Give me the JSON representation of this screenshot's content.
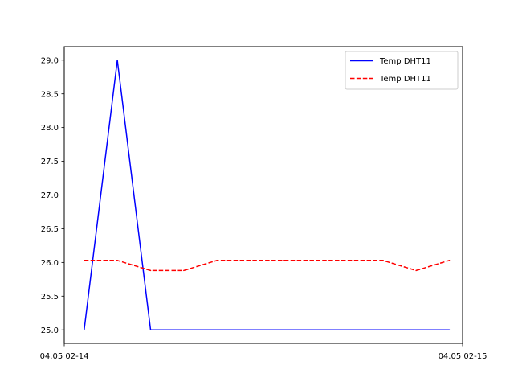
{
  "chart_data": {
    "type": "line",
    "title": "",
    "xlabel": "",
    "ylabel": "",
    "x_tick_labels": [
      "04.05 02-14",
      "04.05 02-15"
    ],
    "y_ticks": [
      25.0,
      25.5,
      26.0,
      26.5,
      27.0,
      27.5,
      28.0,
      28.5,
      29.0
    ],
    "y_tick_labels": [
      "25.0",
      "25.5",
      "26.0",
      "26.5",
      "27.0",
      "27.5",
      "28.0",
      "28.5",
      "29.0"
    ],
    "xlim": [
      "04.05 02-14",
      "04.05 02-15"
    ],
    "ylim": [
      24.8,
      29.2
    ],
    "grid": false,
    "legend_position": "upper right",
    "series": [
      {
        "name": "Temp DHT11",
        "color": "#0000ff",
        "style": "solid",
        "x": [
          "04.05 02:14:03",
          "04.05 02:14:08",
          "04.05 02:14:13",
          "04.05 02:14:18",
          "04.05 02:14:23",
          "04.05 02:14:28",
          "04.05 02:14:33",
          "04.05 02:14:38",
          "04.05 02:14:43",
          "04.05 02:14:48",
          "04.05 02:14:53",
          "04.05 02:14:58"
        ],
        "values": [
          25.0,
          29.0,
          25.0,
          25.0,
          25.0,
          25.0,
          25.0,
          25.0,
          25.0,
          25.0,
          25.0,
          25.0
        ]
      },
      {
        "name": "Temp DHT11",
        "color": "#ff0000",
        "style": "dashed",
        "x": [
          "04.05 02:14:03",
          "04.05 02:14:08",
          "04.05 02:14:13",
          "04.05 02:14:18",
          "04.05 02:14:23",
          "04.05 02:14:28",
          "04.05 02:14:33",
          "04.05 02:14:38",
          "04.05 02:14:43",
          "04.05 02:14:48",
          "04.05 02:14:53",
          "04.05 02:14:58"
        ],
        "values": [
          26.03,
          26.03,
          25.88,
          25.88,
          26.03,
          26.03,
          26.03,
          26.03,
          26.03,
          26.03,
          25.88,
          26.03
        ]
      }
    ]
  }
}
